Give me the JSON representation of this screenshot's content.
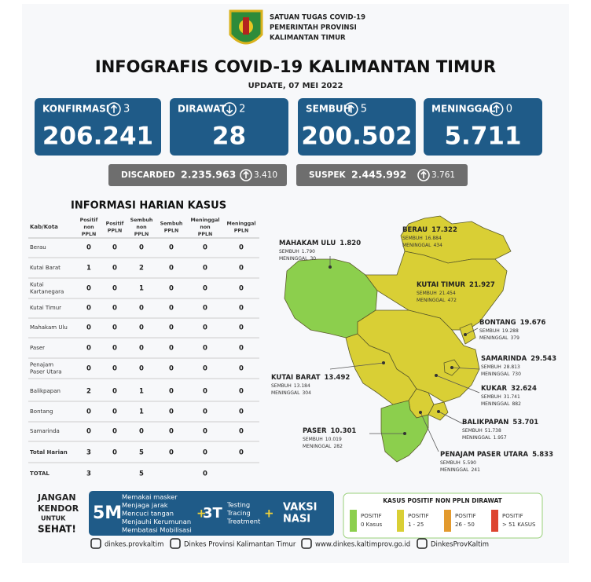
{
  "header": {
    "org": [
      "SATUAN TUGAS COVID-19",
      "PEMERINTAH PROVINSI",
      "KALIMANTAN TIMUR"
    ],
    "title": "INFOGRAFIS COVID-19 KALIMANTAN TIMUR",
    "update": "UPDATE, 07 MEI 2022"
  },
  "stats": [
    {
      "label": "KONFIRMASI",
      "direction": "up",
      "change": "3",
      "value": "206.241"
    },
    {
      "label": "DIRAWAT",
      "direction": "down",
      "change": "2",
      "value": "28"
    },
    {
      "label": "SEMBUH",
      "direction": "up",
      "change": "5",
      "value": "200.502"
    },
    {
      "label": "MENINGGAL",
      "direction": "up",
      "change": "0",
      "value": "5.711"
    }
  ],
  "secondary": [
    {
      "label": "DISCARDED",
      "value": "2.235.963",
      "direction": "up",
      "change": "3.410"
    },
    {
      "label": "SUSPEK",
      "value": "2.445.992",
      "direction": "up",
      "change": "3.761"
    }
  ],
  "table": {
    "title": "INFORMASI HARIAN KASUS",
    "headers": [
      "Kab/Kota",
      "Positif non PPLN",
      "Positif PPLN",
      "Sembuh non PPLN",
      "Sembuh PPLN",
      "Meninggal non PPLN",
      "Meninggal PPLN"
    ],
    "rows": [
      [
        "Berau",
        0,
        0,
        0,
        0,
        0,
        0
      ],
      [
        "Kutai Barat",
        1,
        0,
        2,
        0,
        0,
        0
      ],
      [
        "Kutai Kartanegara",
        0,
        0,
        1,
        0,
        0,
        0
      ],
      [
        "Kutai Timur",
        0,
        0,
        0,
        0,
        0,
        0
      ],
      [
        "Mahakam Ulu",
        0,
        0,
        0,
        0,
        0,
        0
      ],
      [
        "Paser",
        0,
        0,
        0,
        0,
        0,
        0
      ],
      [
        "Penajam Paser Utara",
        0,
        0,
        0,
        0,
        0,
        0
      ],
      [
        "Balikpapan",
        2,
        0,
        1,
        0,
        0,
        0
      ],
      [
        "Bontang",
        0,
        0,
        1,
        0,
        0,
        0
      ],
      [
        "Samarinda",
        0,
        0,
        0,
        0,
        0,
        0
      ],
      [
        "Total Harian",
        3,
        0,
        5,
        0,
        0,
        0
      ],
      [
        "TOTAL",
        3,
        null,
        5,
        null,
        0,
        null
      ]
    ]
  },
  "map": {
    "sembuh_label": "SEMBUH",
    "meninggal_label": "MENINGGAL",
    "regions": [
      {
        "name": "BERAU",
        "total": "17.322",
        "sembuh": "16.884",
        "meninggal": "434",
        "level": 1
      },
      {
        "name": "MAHAKAM ULU",
        "total": "1.820",
        "sembuh": "1.790",
        "meninggal": "30",
        "level": 0
      },
      {
        "name": "KUTAI TIMUR",
        "total": "21.927",
        "sembuh": "21.454",
        "meninggal": "472",
        "level": 1
      },
      {
        "name": "BONTANG",
        "total": "19.676",
        "sembuh": "19.288",
        "meninggal": "379",
        "level": 1
      },
      {
        "name": "SAMARINDA",
        "total": "29.543",
        "sembuh": "28.813",
        "meninggal": "730",
        "level": 1
      },
      {
        "name": "KUTAI BARAT",
        "total": "13.492",
        "sembuh": "13.184",
        "meninggal": "304",
        "level": 1
      },
      {
        "name": "KUKAR",
        "total": "32.624",
        "sembuh": "31.741",
        "meninggal": "882",
        "level": 1
      },
      {
        "name": "BALIKPAPAN",
        "total": "53.701",
        "sembuh": "51.738",
        "meninggal": "1.957",
        "level": 1
      },
      {
        "name": "PASER",
        "total": "10.301",
        "sembuh": "10.019",
        "meninggal": "282",
        "level": 0
      },
      {
        "name": "PENAJAM PASER UTARA",
        "total": "5.833",
        "sembuh": "5.590",
        "meninggal": "241",
        "level": 1
      }
    ]
  },
  "legend": {
    "title": "KASUS POSITIF NON PPLN DIRAWAT",
    "items": [
      {
        "label": "POSITIF",
        "range": "0 Kasus",
        "color": "#8ccf4d"
      },
      {
        "label": "POSITIF",
        "range": "1 - 25",
        "color": "#d9cf35"
      },
      {
        "label": "POSITIF",
        "range": "26 - 50",
        "color": "#e39a2e"
      },
      {
        "label": "POSITIF",
        "range": "> 51 KASUS",
        "color": "#dd4530"
      }
    ]
  },
  "campaign": {
    "slogan": [
      "JANGAN",
      "KENDOR",
      "UNTUK",
      "SEHAT!"
    ],
    "m5": "5M",
    "m5_items": [
      "Memakai masker",
      "Menjaga jarak",
      "Mencuci tangan",
      "Menjauhi Kerumunan",
      "Membatasi Mobilisasi"
    ],
    "plus": "+",
    "t3": "3T",
    "t3_items": [
      "Testing",
      "Tracing",
      "Treatment"
    ],
    "vaksin": [
      "VAKSI",
      "NASI"
    ]
  },
  "footer": [
    "dinkes.provkaltim",
    "Dinkes Provinsi Kalimantan Timur",
    "www.dinkes.kaltimprov.go.id",
    "DinkesProvKaltim"
  ]
}
